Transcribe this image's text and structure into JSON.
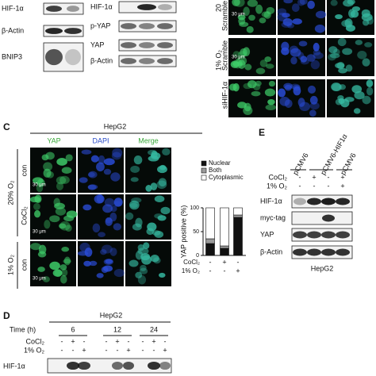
{
  "panel_a": {
    "blot_labels": [
      "HIF-1α",
      "β-Actin",
      "BNIP3"
    ]
  },
  "panel_b": {
    "blot_labels": [
      "HIF-1α",
      "p-YAP",
      "YAP",
      "β-Actin"
    ]
  },
  "panel_top_right": {
    "row_labels": [
      "20",
      "Scramble",
      "1% O₂",
      "Scramble",
      "siHIF-1α"
    ],
    "scale_bars": [
      "30 μm",
      "30 μm"
    ]
  },
  "panel_c": {
    "letter": "C",
    "cell_line": "HepG2",
    "columns": [
      "YAP",
      "DAPI",
      "Merge"
    ],
    "row_labels": [
      "con",
      "CoCl₂",
      "con"
    ],
    "groups": [
      "20% O₂",
      "1% O₂"
    ],
    "scale_bars": [
      "30 μm",
      "30 μm",
      "30 μm"
    ]
  },
  "chart_data": {
    "type": "stacked-bar",
    "y_label": "YAP positive (%)",
    "categories": [
      null,
      null,
      null
    ],
    "series": [
      {
        "name": "Nuclear",
        "color": "#111111",
        "values": [
          25,
          15,
          80
        ]
      },
      {
        "name": "Both",
        "color": "#9a9a9a",
        "values": [
          10,
          5,
          5
        ]
      },
      {
        "name": "Cytoplasmic",
        "color": "#ffffff",
        "values": [
          65,
          80,
          15
        ]
      }
    ],
    "ylim": [
      0,
      100
    ],
    "yticks": [
      0,
      50,
      100
    ],
    "conditions": [
      {
        "name": "CoCl₂",
        "values": [
          "-",
          "+",
          "-"
        ]
      },
      {
        "name": "1% O₂",
        "values": [
          "-",
          "-",
          "+"
        ]
      }
    ]
  },
  "panel_e": {
    "letter": "E",
    "columns": [
      "pCMV6",
      "pCMV6-HIF1α",
      "pCMV6"
    ],
    "conditions": [
      {
        "name": "CoCl₂",
        "values": [
          "-",
          "+",
          "-",
          "+"
        ]
      },
      {
        "name": "1% O₂",
        "values": [
          "-",
          "-",
          "-",
          "+"
        ]
      }
    ],
    "blot_labels": [
      "HIF-1α",
      "myc-tag",
      "YAP",
      "β-Actin"
    ],
    "cell_line": "HepG2"
  },
  "panel_d": {
    "letter": "D",
    "cell_line": "HepG2",
    "time_label": "Time (h)",
    "times": [
      "6",
      "12",
      "24"
    ],
    "conditions": [
      {
        "name": "CoCl₂",
        "values": [
          "-",
          "+",
          "-",
          "-",
          "+",
          "-",
          "-",
          "+",
          "-"
        ]
      },
      {
        "name": "1% O₂",
        "values": [
          "-",
          "-",
          "+",
          "-",
          "-",
          "+",
          "-",
          "-",
          "+"
        ]
      }
    ],
    "blot_labels": [
      "HIF-1α"
    ]
  }
}
